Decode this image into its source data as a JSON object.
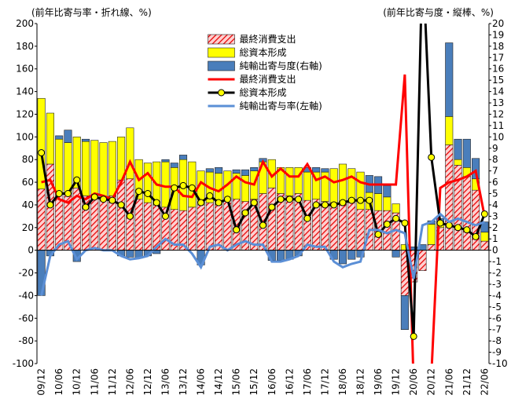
{
  "chart_data": {
    "type": "bar",
    "y_label": "(前年比寄与率・折れ線、%)",
    "y2_label": "(前年比寄与度・縦棒、%)",
    "categories": [
      "09/12",
      null,
      "10/06",
      null,
      "10/12",
      null,
      "11/06",
      null,
      "11/12",
      null,
      "12/06",
      null,
      "12/12",
      null,
      "13/06",
      null,
      "13/12",
      null,
      "14/06",
      null,
      "14/12",
      null,
      "15/06",
      null,
      "15/12",
      null,
      "16/06",
      null,
      "16/12",
      null,
      "17/06",
      null,
      "17/12",
      null,
      "18/06",
      null,
      "18/12",
      null,
      "19/06",
      null,
      "19/12",
      null,
      "20/06",
      null,
      "20/12",
      null,
      "21/06",
      null,
      "21/12",
      null,
      "22/06"
    ],
    "ylim": [
      -100,
      200
    ],
    "yticks": [
      -100,
      -80,
      -60,
      -40,
      -20,
      0,
      20,
      40,
      60,
      80,
      100,
      120,
      140,
      160,
      180,
      200
    ],
    "y2lim": [
      -10,
      20
    ],
    "y2ticks": [
      -10,
      -9,
      -8,
      -7,
      -6,
      -5,
      -4,
      -3,
      -2,
      -1,
      0,
      1,
      2,
      3,
      4,
      5,
      6,
      7,
      8,
      9,
      10,
      11,
      12,
      13,
      14,
      15,
      16,
      17,
      18,
      19,
      20
    ],
    "legend": "upper center",
    "series": [
      {
        "name": "最終消費支出",
        "type": "bar",
        "axis": "y2",
        "color": "#e60000",
        "hatch": true,
        "values": [
          5.4,
          7.6,
          5.0,
          5.0,
          5.5,
          4.8,
          4.7,
          4.7,
          4.8,
          6.2,
          6.3,
          4.5,
          4.2,
          4.0,
          3.8,
          3.6,
          3.5,
          3.8,
          4.0,
          4.2,
          4.0,
          4.5,
          4.5,
          4.3,
          4.5,
          5.0,
          5.5,
          5.0,
          4.8,
          5.0,
          4.4,
          4.5,
          4.3,
          4.2,
          4.1,
          4.2,
          3.6,
          3.6,
          3.5,
          3.5,
          3.3,
          -4.0,
          -2.8,
          -1.8,
          0.5,
          2.0,
          9.3,
          7.5,
          6.5,
          5.3,
          0.8
        ]
      },
      {
        "name": "総資本形成",
        "type": "bar",
        "axis": "y2",
        "color": "#ffff00",
        "values": [
          8.0,
          4.5,
          4.8,
          4.5,
          4.5,
          4.8,
          5.0,
          4.8,
          4.8,
          3.8,
          4.5,
          3.5,
          3.5,
          3.8,
          4.0,
          3.7,
          4.5,
          4.0,
          3.0,
          2.7,
          2.8,
          2.5,
          2.3,
          2.3,
          2.5,
          2.8,
          2.5,
          2.3,
          2.5,
          2.3,
          2.5,
          2.4,
          2.6,
          3.0,
          3.5,
          3.0,
          3.3,
          1.5,
          1.5,
          1.2,
          0.8,
          0.5,
          0.0,
          0.0,
          1.8,
          0.5,
          2.5,
          0.5,
          0.8,
          1.0,
          0.8
        ]
      },
      {
        "name": "純輸出寄与度(右軸)",
        "type": "bar",
        "axis": "y2",
        "color": "#4a7ebb",
        "values": [
          -4.0,
          -0.5,
          0.3,
          1.1,
          -1.0,
          0.2,
          0.0,
          0.0,
          0.0,
          -0.5,
          -0.6,
          -0.7,
          -0.5,
          -0.3,
          0.2,
          0.4,
          0.4,
          0.0,
          -1.3,
          0.3,
          0.5,
          0.0,
          0.3,
          0.5,
          0.3,
          0.3,
          -0.9,
          -0.9,
          -0.8,
          -0.5,
          0.4,
          0.4,
          0.3,
          -0.8,
          -1.2,
          -0.8,
          -0.6,
          1.5,
          1.5,
          1.0,
          -0.6,
          -3.0,
          0.3,
          0.5,
          0.3,
          0.3,
          6.5,
          1.8,
          2.5,
          1.8,
          0.9
        ]
      },
      {
        "name": "最終消費支出",
        "type": "line",
        "color": "#ff0000",
        "values": [
          60,
          62,
          45,
          42,
          48,
          45,
          50,
          48,
          45,
          60,
          78,
          62,
          68,
          58,
          56,
          56,
          48,
          47,
          60,
          55,
          52,
          58,
          65,
          60,
          58,
          78,
          65,
          72,
          65,
          65,
          76,
          62,
          65,
          60,
          62,
          65,
          60,
          58,
          58,
          58,
          58,
          155,
          -120,
          -130,
          -110,
          55,
          60,
          62,
          65,
          70,
          30
        ]
      },
      {
        "name": "総資本形成",
        "type": "line",
        "color": "#000000",
        "marker": "#ffff00",
        "values": [
          86,
          40,
          50,
          50,
          62,
          38,
          47,
          45,
          44,
          40,
          30,
          52,
          50,
          42,
          30,
          55,
          57,
          55,
          42,
          48,
          42,
          45,
          18,
          33,
          42,
          22,
          38,
          45,
          45,
          45,
          28,
          40,
          40,
          40,
          42,
          44,
          44,
          44,
          14,
          23,
          28,
          24,
          -76,
          260,
          82,
          24,
          22,
          20,
          18,
          12,
          32
        ]
      },
      {
        "name": "純輸出寄与率(左軸)",
        "type": "line",
        "color": "#5b8fd6",
        "values": [
          -40,
          -5,
          5,
          8,
          -8,
          0,
          2,
          0,
          0,
          -5,
          -8,
          -7,
          -5,
          3,
          10,
          5,
          5,
          -3,
          -15,
          3,
          5,
          0,
          5,
          8,
          5,
          5,
          -10,
          -10,
          -8,
          -5,
          5,
          3,
          3,
          -10,
          -15,
          -12,
          -10,
          18,
          18,
          15,
          18,
          15,
          -25,
          22,
          25,
          32,
          25,
          28,
          25,
          22,
          25
        ]
      }
    ]
  }
}
